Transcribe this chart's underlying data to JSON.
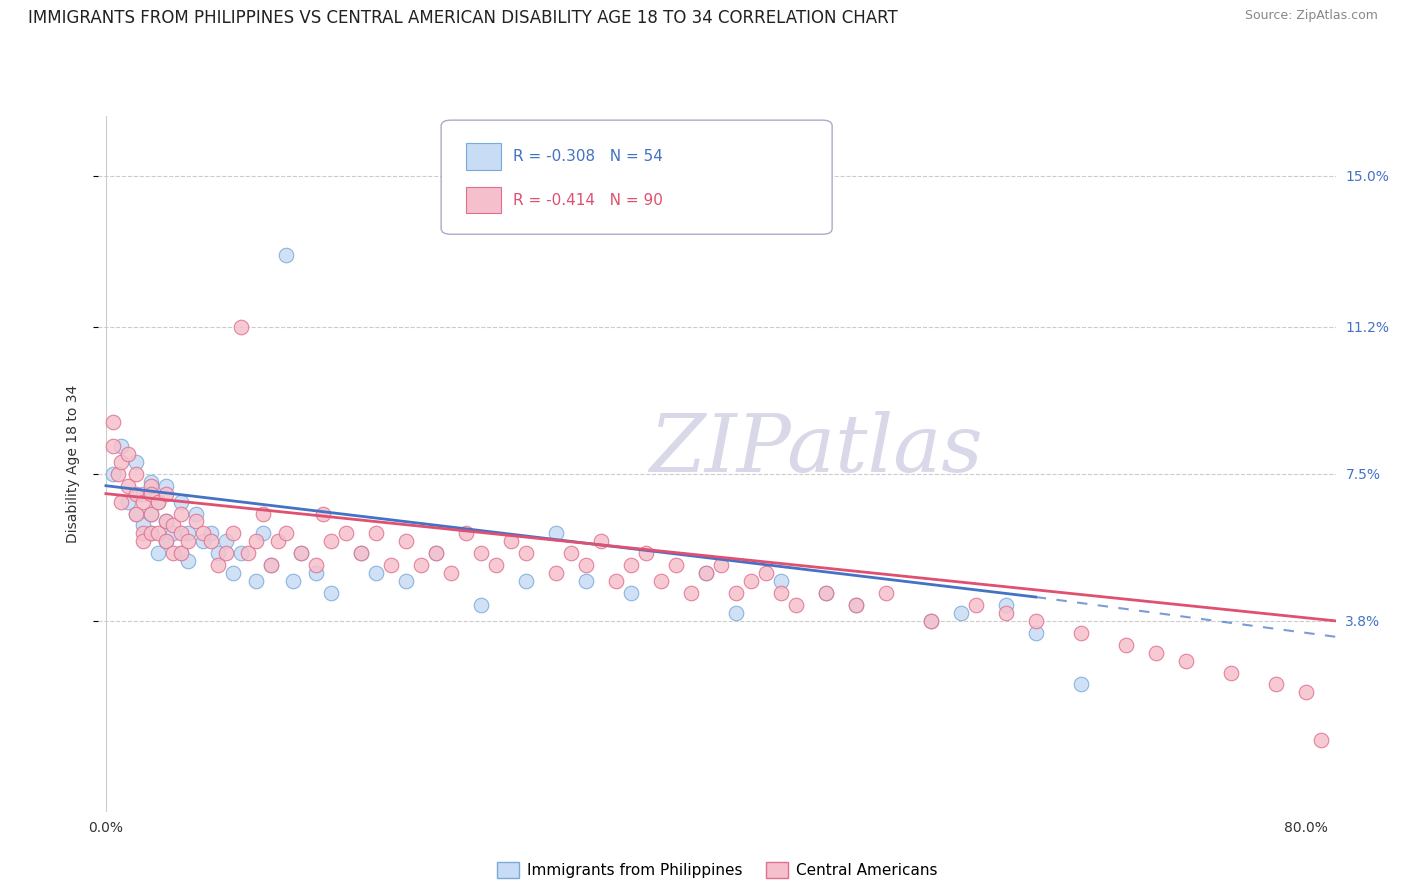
{
  "title": "IMMIGRANTS FROM PHILIPPINES VS CENTRAL AMERICAN DISABILITY AGE 18 TO 34 CORRELATION CHART",
  "source": "Source: ZipAtlas.com",
  "ylabel": "Disability Age 18 to 34",
  "xlim": [
    -0.005,
    0.82
  ],
  "ylim": [
    -0.01,
    0.165
  ],
  "xticks": [
    0.0,
    0.1,
    0.2,
    0.3,
    0.4,
    0.5,
    0.6,
    0.7,
    0.8
  ],
  "xticklabels": [
    "0.0%",
    "",
    "",
    "",
    "",
    "",
    "",
    "",
    "80.0%"
  ],
  "ytick_values": [
    0.038,
    0.075,
    0.112,
    0.15
  ],
  "ytick_labels": [
    "3.8%",
    "7.5%",
    "11.2%",
    "15.0%"
  ],
  "series1_name": "Immigrants from Philippines",
  "series1_fill_color": "#c8dcf5",
  "series1_edge_color": "#7aaad8",
  "series1_R": -0.308,
  "series1_N": 54,
  "series1_line_color": "#4472c4",
  "series2_name": "Central Americans",
  "series2_fill_color": "#f5c0cc",
  "series2_edge_color": "#e07090",
  "series2_R": -0.414,
  "series2_N": 90,
  "series2_line_color": "#e05070",
  "background_color": "#ffffff",
  "watermark_text": "ZIPatlas",
  "watermark_color": "#d8d8e8",
  "title_fontsize": 12,
  "axis_label_fontsize": 10,
  "tick_fontsize": 10,
  "series1_line_x_start": 0.0,
  "series1_line_x_solid_end": 0.62,
  "series1_line_x_dashed_end": 0.82,
  "series1_line_y_start": 0.072,
  "series1_line_y_solid_end": 0.044,
  "series1_line_y_dashed_end": 0.034,
  "series2_line_x_start": 0.0,
  "series2_line_x_end": 0.82,
  "series2_line_y_start": 0.07,
  "series2_line_y_end": 0.038,
  "series1_x": [
    0.005,
    0.01,
    0.015,
    0.02,
    0.02,
    0.025,
    0.025,
    0.03,
    0.03,
    0.03,
    0.035,
    0.035,
    0.04,
    0.04,
    0.04,
    0.045,
    0.05,
    0.05,
    0.055,
    0.055,
    0.06,
    0.065,
    0.07,
    0.075,
    0.08,
    0.085,
    0.09,
    0.1,
    0.105,
    0.11,
    0.12,
    0.125,
    0.13,
    0.14,
    0.15,
    0.17,
    0.18,
    0.2,
    0.22,
    0.25,
    0.28,
    0.3,
    0.32,
    0.35,
    0.4,
    0.42,
    0.45,
    0.48,
    0.5,
    0.55,
    0.57,
    0.6,
    0.62,
    0.65
  ],
  "series1_y": [
    0.075,
    0.082,
    0.068,
    0.065,
    0.078,
    0.07,
    0.062,
    0.073,
    0.065,
    0.06,
    0.068,
    0.055,
    0.063,
    0.058,
    0.072,
    0.06,
    0.055,
    0.068,
    0.06,
    0.053,
    0.065,
    0.058,
    0.06,
    0.055,
    0.058,
    0.05,
    0.055,
    0.048,
    0.06,
    0.052,
    0.13,
    0.048,
    0.055,
    0.05,
    0.045,
    0.055,
    0.05,
    0.048,
    0.055,
    0.042,
    0.048,
    0.06,
    0.048,
    0.045,
    0.05,
    0.04,
    0.048,
    0.045,
    0.042,
    0.038,
    0.04,
    0.042,
    0.035,
    0.022
  ],
  "series2_x": [
    0.005,
    0.005,
    0.008,
    0.01,
    0.01,
    0.015,
    0.015,
    0.02,
    0.02,
    0.02,
    0.025,
    0.025,
    0.025,
    0.03,
    0.03,
    0.03,
    0.03,
    0.035,
    0.035,
    0.04,
    0.04,
    0.04,
    0.045,
    0.045,
    0.05,
    0.05,
    0.05,
    0.055,
    0.06,
    0.065,
    0.07,
    0.075,
    0.08,
    0.085,
    0.09,
    0.095,
    0.1,
    0.105,
    0.11,
    0.115,
    0.12,
    0.13,
    0.14,
    0.145,
    0.15,
    0.16,
    0.17,
    0.18,
    0.19,
    0.2,
    0.21,
    0.22,
    0.23,
    0.24,
    0.25,
    0.26,
    0.27,
    0.28,
    0.3,
    0.31,
    0.32,
    0.33,
    0.34,
    0.35,
    0.36,
    0.37,
    0.38,
    0.39,
    0.4,
    0.41,
    0.42,
    0.43,
    0.44,
    0.45,
    0.46,
    0.48,
    0.5,
    0.52,
    0.55,
    0.58,
    0.6,
    0.62,
    0.65,
    0.68,
    0.7,
    0.72,
    0.75,
    0.78,
    0.8,
    0.81
  ],
  "series2_y": [
    0.082,
    0.088,
    0.075,
    0.078,
    0.068,
    0.072,
    0.08,
    0.07,
    0.065,
    0.075,
    0.06,
    0.068,
    0.058,
    0.072,
    0.065,
    0.06,
    0.07,
    0.06,
    0.068,
    0.063,
    0.058,
    0.07,
    0.062,
    0.055,
    0.065,
    0.06,
    0.055,
    0.058,
    0.063,
    0.06,
    0.058,
    0.052,
    0.055,
    0.06,
    0.112,
    0.055,
    0.058,
    0.065,
    0.052,
    0.058,
    0.06,
    0.055,
    0.052,
    0.065,
    0.058,
    0.06,
    0.055,
    0.06,
    0.052,
    0.058,
    0.052,
    0.055,
    0.05,
    0.06,
    0.055,
    0.052,
    0.058,
    0.055,
    0.05,
    0.055,
    0.052,
    0.058,
    0.048,
    0.052,
    0.055,
    0.048,
    0.052,
    0.045,
    0.05,
    0.052,
    0.045,
    0.048,
    0.05,
    0.045,
    0.042,
    0.045,
    0.042,
    0.045,
    0.038,
    0.042,
    0.04,
    0.038,
    0.035,
    0.032,
    0.03,
    0.028,
    0.025,
    0.022,
    0.02,
    0.008
  ]
}
